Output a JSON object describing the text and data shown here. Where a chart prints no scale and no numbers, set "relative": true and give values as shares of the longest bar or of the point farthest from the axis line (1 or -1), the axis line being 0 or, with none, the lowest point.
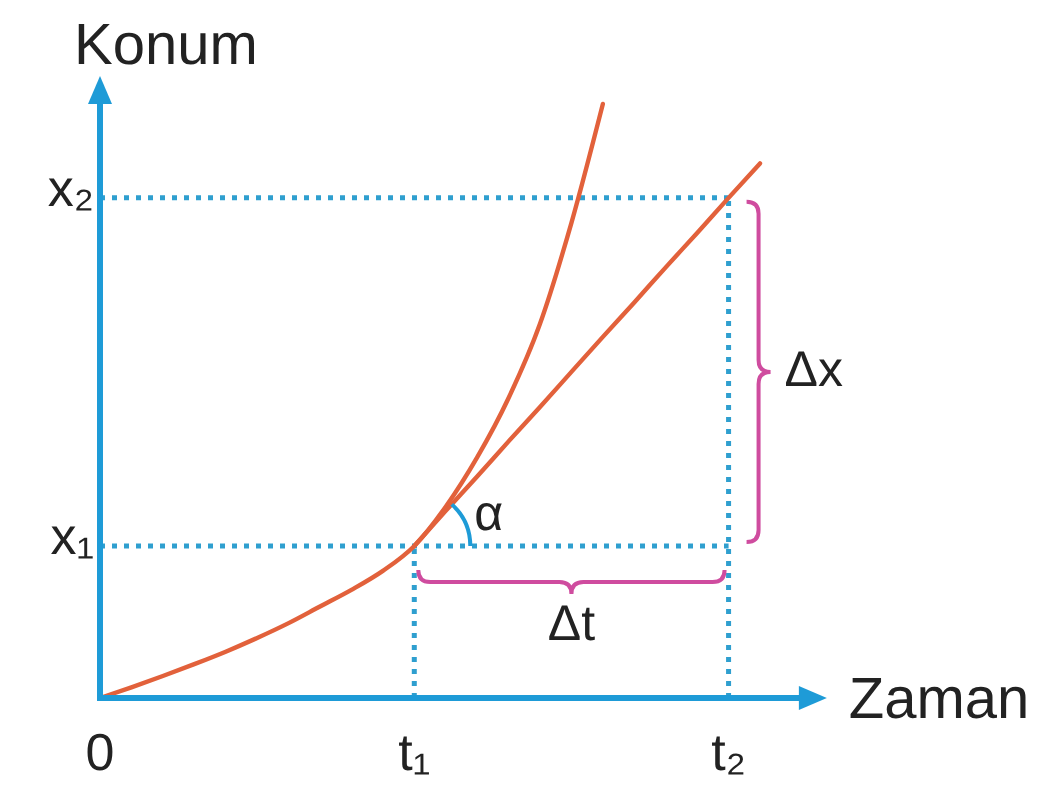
{
  "chart_data": {
    "type": "line",
    "xlabel": "Zaman",
    "ylabel": "Konum",
    "relative": true,
    "categories": [
      "0",
      null,
      null,
      null,
      null,
      null,
      null,
      null,
      null,
      null,
      "t₁",
      null,
      null,
      null,
      null,
      null,
      null,
      null,
      null,
      null,
      "t₂",
      null
    ],
    "series": [
      {
        "color": "#e2613b",
        "values": [
          0,
          0.018,
          0.037,
          0.057,
          0.078,
          0.101,
          0.126,
          0.154,
          0.182,
          0.214,
          0.256,
          0.322,
          0.405,
          0.505,
          0.63,
          0.8,
          1,
          null,
          null,
          null,
          null,
          null
        ]
      },
      {
        "color": "#e2613b",
        "values": [
          null,
          null,
          null,
          null,
          null,
          null,
          null,
          null,
          null,
          null,
          0.256,
          0.315,
          0.373,
          0.432,
          0.49,
          0.549,
          0.608,
          0.666,
          0.725,
          0.783,
          0.842,
          0.9
        ]
      }
    ],
    "ref_lines": [
      {
        "axis": "y",
        "value": 0.256,
        "label": "x₁",
        "color": "#2f9fcf",
        "line_style": "dotted"
      },
      {
        "axis": "y",
        "value": 0.842,
        "label": "x₂",
        "color": "#2f9fcf",
        "line_style": "dotted"
      },
      {
        "axis": "x",
        "value": "t₁",
        "color": "#2f9fcf",
        "line_style": "dotted"
      },
      {
        "axis": "x",
        "value": "t₂",
        "color": "#2f9fcf",
        "line_style": "dotted"
      }
    ],
    "annotations": [
      "α",
      "Δx",
      "Δt"
    ]
  }
}
